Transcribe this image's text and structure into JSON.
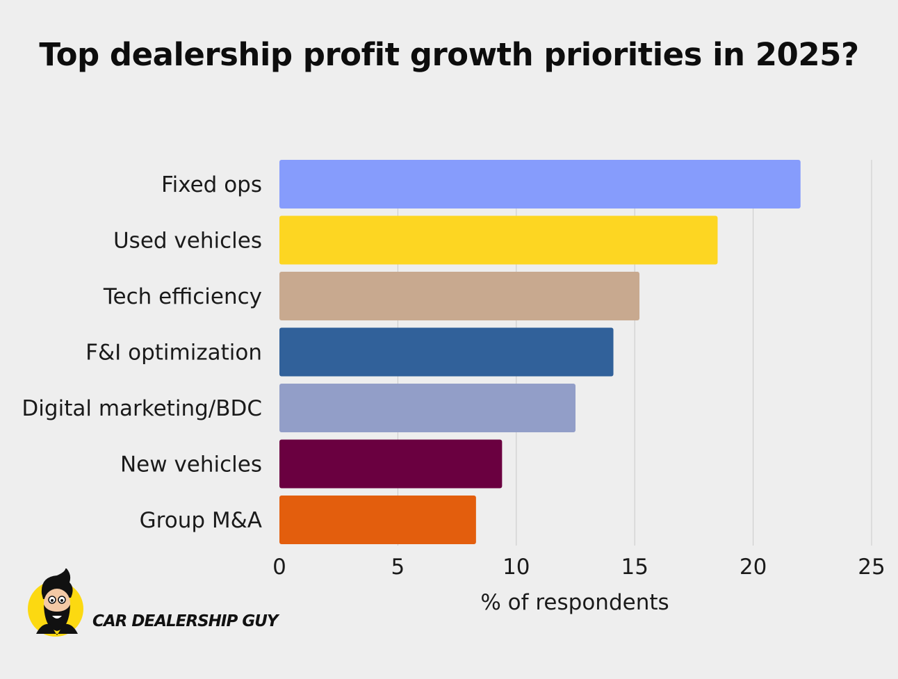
{
  "chart_data": {
    "type": "bar",
    "orientation": "horizontal",
    "title": "Top dealership profit growth priorities in 2025?",
    "xlabel": "% of respondents",
    "ylabel": "",
    "xlim": [
      0,
      25
    ],
    "xticks": [
      0,
      5,
      10,
      15,
      20,
      25
    ],
    "grid": true,
    "categories": [
      "Fixed ops",
      "Used vehicles",
      "Tech efficiency",
      "F&I optimization",
      "Digital marketing/BDC",
      "New vehicles",
      "Group M&A"
    ],
    "values": [
      22,
      18.5,
      15.2,
      14.1,
      12.5,
      9.4,
      8.3
    ],
    "colors": [
      "#869cfc",
      "#fdd622",
      "#c8a98f",
      "#31619a",
      "#929ec8",
      "#6a0040",
      "#e35e0d"
    ]
  },
  "brand": {
    "name": "CAR DEALERSHIP GUY",
    "logo_icon": "bearded-man-mascot-icon",
    "logo_color": "#fcd911"
  }
}
